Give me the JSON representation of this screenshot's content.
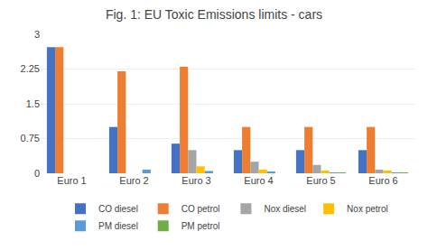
{
  "chart_data": {
    "type": "bar",
    "title": "Fig. 1: EU Toxic Emissions limits - cars",
    "categories": [
      "Euro 1",
      "Euro 2",
      "Euro 3",
      "Euro 4",
      "Euro 5",
      "Euro 6"
    ],
    "series": [
      {
        "name": "CO diesel",
        "color": "#4472C4",
        "values": [
          2.72,
          1.0,
          0.64,
          0.5,
          0.5,
          0.5
        ]
      },
      {
        "name": "CO petrol",
        "color": "#ED7D31",
        "values": [
          2.72,
          2.2,
          2.3,
          1.0,
          1.0,
          1.0
        ]
      },
      {
        "name": "Nox diesel",
        "color": "#A5A5A5",
        "values": [
          0.0,
          0.0,
          0.5,
          0.25,
          0.18,
          0.08
        ]
      },
      {
        "name": "Nox petrol",
        "color": "#FFC000",
        "values": [
          0.0,
          0.0,
          0.15,
          0.08,
          0.06,
          0.06
        ]
      },
      {
        "name": "PM diesel",
        "color": "#5B9BD5",
        "values": [
          0.0,
          0.08,
          0.05,
          0.025,
          0.005,
          0.005
        ]
      },
      {
        "name": "PM petrol",
        "color": "#70AD47",
        "values": [
          0.0,
          0.0,
          0.0,
          0.0,
          0.005,
          0.005
        ]
      }
    ],
    "ylim": [
      0,
      3
    ],
    "yticks": [
      0,
      0.75,
      1.5,
      2.25,
      3
    ],
    "grid": true,
    "legend": "bottom"
  }
}
